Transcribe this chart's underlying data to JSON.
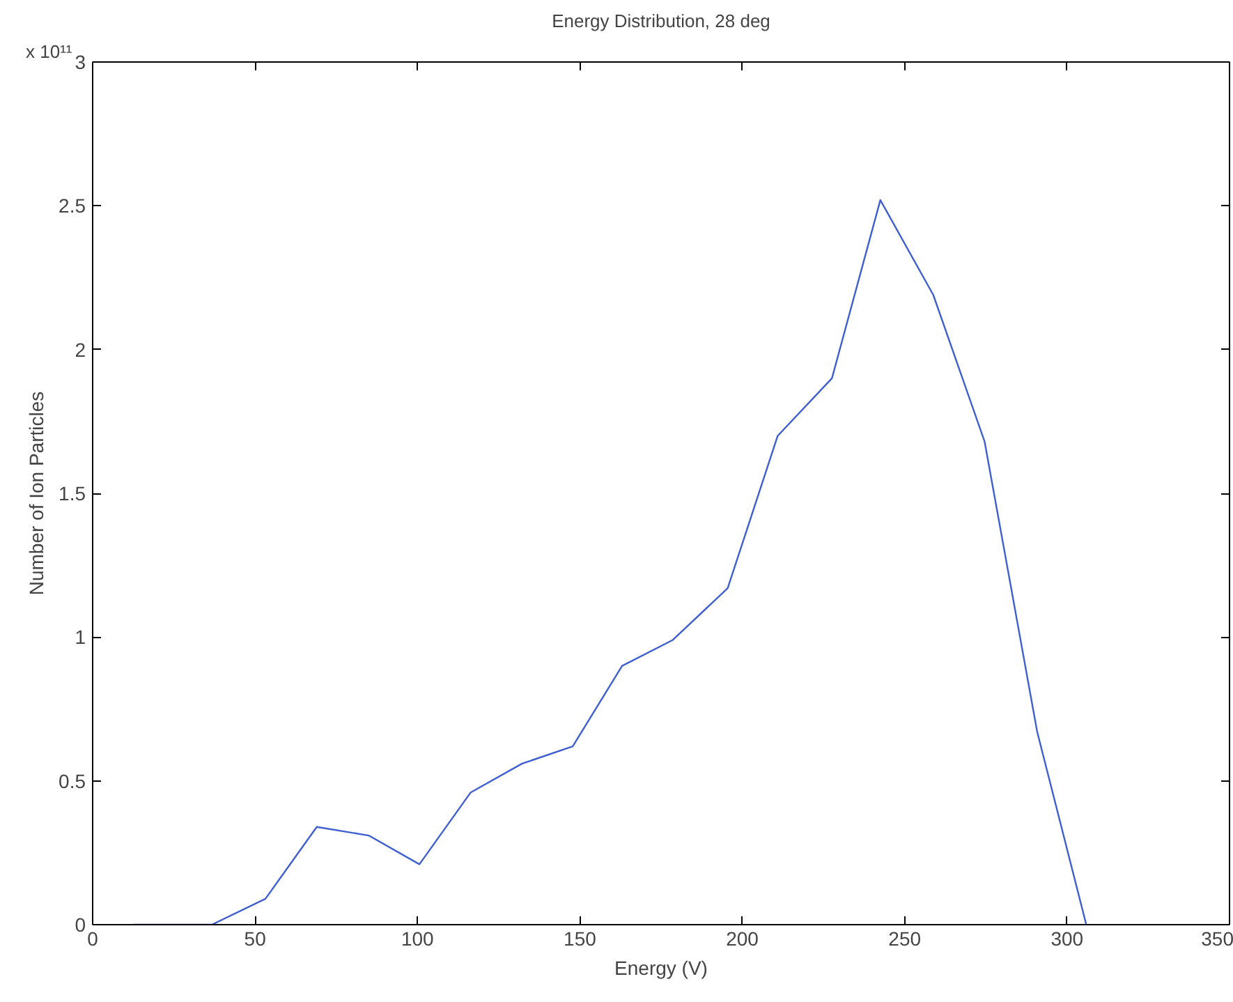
{
  "chart_data": {
    "type": "line",
    "title": "Energy Distribution, 28 deg",
    "xlabel": "Energy (V)",
    "ylabel": "Number of Ion Particles",
    "annotations": [
      "x 10¹¹"
    ],
    "x": [
      12.6,
      28.3,
      36.7,
      53.2,
      69,
      85,
      100.6,
      116.4,
      132.2,
      147.8,
      163,
      178.6,
      195.5,
      210.9,
      227.6,
      242.5,
      258.8,
      274.6,
      290.8,
      305.9
    ],
    "series": [
      {
        "color": "#3f5fd0",
        "values": [
          0,
          0,
          0,
          0.09,
          0.34,
          0.31,
          0.21,
          0.46,
          0.56,
          0.62,
          0.9,
          0.99,
          1.17,
          1.7,
          1.9,
          2.52,
          2.19,
          1.68,
          0.67,
          0
        ]
      }
    ],
    "xlim": [
      0,
      350
    ],
    "ylim": [
      0,
      3
    ],
    "xticks": [
      0,
      50,
      100,
      150,
      200,
      250,
      300,
      350
    ],
    "yticks": [
      0,
      0.5,
      1,
      1.5,
      2,
      2.5,
      3
    ],
    "grid": false,
    "line_style": "solid"
  }
}
